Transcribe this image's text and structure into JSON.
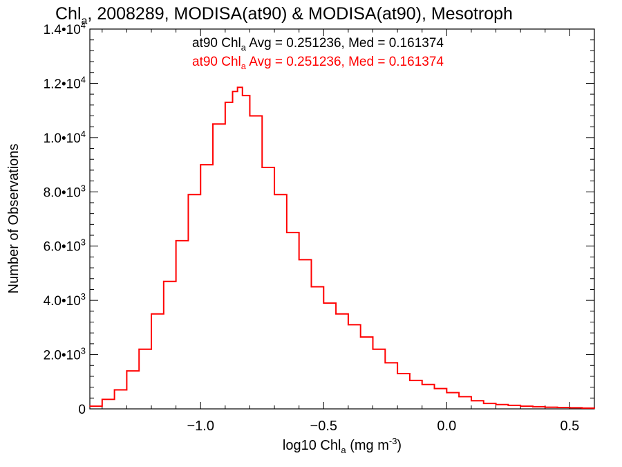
{
  "chart_data": {
    "type": "line",
    "title": {
      "prefix": "Chl",
      "sub": "a",
      "rest": ", 2008289, MODISA(at90) & MODISA(at90), Mesotroph"
    },
    "xlabel": {
      "prefix": "log10 Chl",
      "sub": "a",
      "mid": " (mg m",
      "sup": "-3",
      "suffix": ")"
    },
    "ylabel": "Number of Observations",
    "xlim": [
      -1.45,
      0.6
    ],
    "ylim": [
      0,
      14000
    ],
    "xticks": [
      {
        "value": -1.0,
        "label": "−1.0"
      },
      {
        "value": -0.5,
        "label": "−0.5"
      },
      {
        "value": 0.0,
        "label": "0.0"
      },
      {
        "value": 0.5,
        "label": "0.5"
      }
    ],
    "yticks": [
      {
        "value": 0,
        "mant": "0",
        "exp": ""
      },
      {
        "value": 2000,
        "mant": "2.0•10",
        "exp": "3"
      },
      {
        "value": 4000,
        "mant": "4.0•10",
        "exp": "3"
      },
      {
        "value": 6000,
        "mant": "6.0•10",
        "exp": "3"
      },
      {
        "value": 8000,
        "mant": "8.0•10",
        "exp": "3"
      },
      {
        "value": 10000,
        "mant": "1.0•10",
        "exp": "4"
      },
      {
        "value": 12000,
        "mant": "1.2•10",
        "exp": "4"
      },
      {
        "value": 14000,
        "mant": "1.4•10",
        "exp": "4"
      }
    ],
    "annotations": [
      {
        "prefix": "at90 Chl",
        "sub": "a",
        "rest": " Avg = 0.251236, Med = 0.161374",
        "color": "#000000"
      },
      {
        "prefix": "at90 Chl",
        "sub": "a",
        "rest": " Avg = 0.251236, Med = 0.161374",
        "color": "#ff0000"
      }
    ],
    "grid": false,
    "step": true,
    "series": [
      {
        "color": "#ff0000",
        "x": [
          -1.45,
          -1.4,
          -1.35,
          -1.3,
          -1.25,
          -1.2,
          -1.15,
          -1.1,
          -1.05,
          -1.0,
          -0.95,
          -0.9,
          -0.87,
          -0.85,
          -0.83,
          -0.8,
          -0.75,
          -0.7,
          -0.65,
          -0.6,
          -0.55,
          -0.5,
          -0.45,
          -0.4,
          -0.35,
          -0.3,
          -0.25,
          -0.2,
          -0.15,
          -0.1,
          -0.05,
          0.0,
          0.05,
          0.1,
          0.15,
          0.2,
          0.25,
          0.3,
          0.35,
          0.4,
          0.45,
          0.5,
          0.55,
          0.6
        ],
        "y": [
          100,
          350,
          700,
          1400,
          2200,
          3500,
          4700,
          6200,
          7900,
          9000,
          10500,
          11300,
          11700,
          11850,
          11550,
          10800,
          8900,
          7900,
          6500,
          5500,
          4500,
          3900,
          3500,
          3100,
          2650,
          2200,
          1700,
          1300,
          1050,
          900,
          750,
          600,
          450,
          300,
          200,
          160,
          130,
          100,
          80,
          60,
          50,
          40,
          30,
          20
        ]
      }
    ]
  }
}
